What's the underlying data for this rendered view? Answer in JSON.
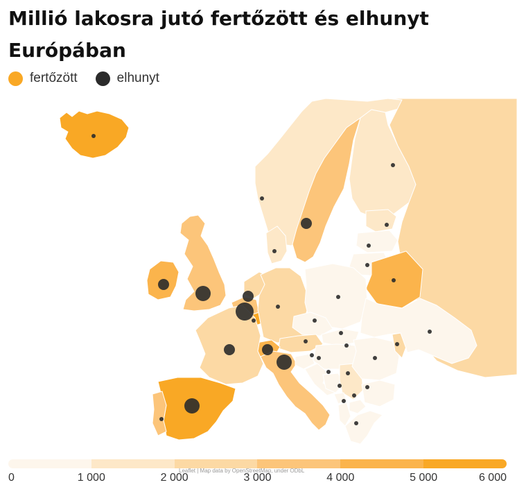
{
  "title": "Millió lakosra jutó fertőzött és elhunyt Európában",
  "legend": {
    "infected_label": "fertőzött",
    "infected_color": "#f9a825",
    "deaths_label": "elhunyt",
    "deaths_color": "#2b2b2b"
  },
  "scale": {
    "colors": [
      "#fdf6ec",
      "#fde8c8",
      "#fcd9a4",
      "#fcc57a",
      "#fbb44c",
      "#f9a825"
    ],
    "ticks": [
      "0",
      "1 000",
      "2 000",
      "3 000",
      "4 000",
      "5 000",
      "6 000"
    ]
  },
  "attribution": "Leaflet | Map data by OpenStreetMap, under ODbL",
  "map_data": {
    "countries": [
      {
        "name": "Iceland",
        "infected_class": 5,
        "death_marker": "small"
      },
      {
        "name": "Norway",
        "infected_class": 1,
        "death_marker": "small"
      },
      {
        "name": "Sweden",
        "infected_class": 3,
        "death_marker": "medium"
      },
      {
        "name": "Finland",
        "infected_class": 1,
        "death_marker": "small"
      },
      {
        "name": "Russia",
        "infected_class": 2,
        "death_marker": "none"
      },
      {
        "name": "Estonia",
        "infected_class": 1,
        "death_marker": "small"
      },
      {
        "name": "Latvia",
        "infected_class": 0,
        "death_marker": "small"
      },
      {
        "name": "Lithuania",
        "infected_class": 0,
        "death_marker": "small"
      },
      {
        "name": "Belarus",
        "infected_class": 4,
        "death_marker": "small"
      },
      {
        "name": "Denmark",
        "infected_class": 1,
        "death_marker": "small"
      },
      {
        "name": "Ireland",
        "infected_class": 4,
        "death_marker": "medium"
      },
      {
        "name": "United Kingdom",
        "infected_class": 3,
        "death_marker": "large"
      },
      {
        "name": "Netherlands",
        "infected_class": 2,
        "death_marker": "medium"
      },
      {
        "name": "Belgium",
        "infected_class": 3,
        "death_marker": "xlarge"
      },
      {
        "name": "Luxembourg",
        "infected_class": 5,
        "death_marker": "small"
      },
      {
        "name": "Germany",
        "infected_class": 2,
        "death_marker": "small"
      },
      {
        "name": "Poland",
        "infected_class": 0,
        "death_marker": "small"
      },
      {
        "name": "Czechia",
        "infected_class": 0,
        "death_marker": "small"
      },
      {
        "name": "Austria",
        "infected_class": 2,
        "death_marker": "small"
      },
      {
        "name": "Switzerland",
        "infected_class": 4,
        "death_marker": "medium"
      },
      {
        "name": "France",
        "infected_class": 2,
        "death_marker": "medium"
      },
      {
        "name": "Italy",
        "infected_class": 3,
        "death_marker": "large"
      },
      {
        "name": "Spain",
        "infected_class": 5,
        "death_marker": "large"
      },
      {
        "name": "Portugal",
        "infected_class": 3,
        "death_marker": "small"
      },
      {
        "name": "Slovakia",
        "infected_class": 0,
        "death_marker": "small"
      },
      {
        "name": "Hungary",
        "infected_class": 0,
        "death_marker": "small"
      },
      {
        "name": "Slovenia",
        "infected_class": 0,
        "death_marker": "small"
      },
      {
        "name": "Croatia",
        "infected_class": 0,
        "death_marker": "small"
      },
      {
        "name": "Bosnia and Herzegovina",
        "infected_class": 0,
        "death_marker": "small"
      },
      {
        "name": "Serbia",
        "infected_class": 1,
        "death_marker": "small"
      },
      {
        "name": "Montenegro",
        "infected_class": 0,
        "death_marker": "small"
      },
      {
        "name": "Albania",
        "infected_class": 0,
        "death_marker": "small"
      },
      {
        "name": "North Macedonia",
        "infected_class": 0,
        "death_marker": "small"
      },
      {
        "name": "Greece",
        "infected_class": 0,
        "death_marker": "small"
      },
      {
        "name": "Bulgaria",
        "infected_class": 0,
        "death_marker": "small"
      },
      {
        "name": "Romania",
        "infected_class": 0,
        "death_marker": "small"
      },
      {
        "name": "Moldova",
        "infected_class": 2,
        "death_marker": "small"
      },
      {
        "name": "Ukraine",
        "infected_class": 0,
        "death_marker": "small"
      }
    ]
  }
}
